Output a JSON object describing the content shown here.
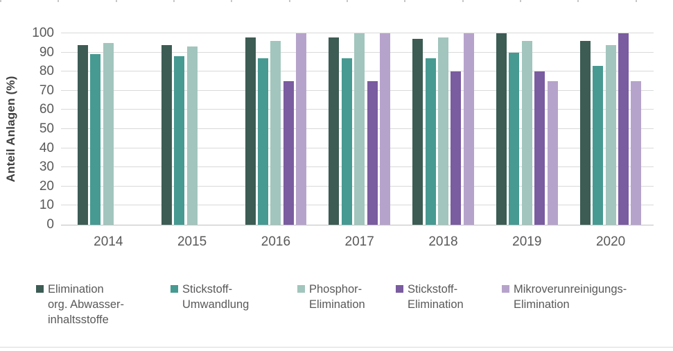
{
  "chart_data": {
    "type": "bar",
    "title": "",
    "xlabel": "",
    "ylabel": "Anteil Anlagen (%)",
    "ylim": [
      0,
      100
    ],
    "ytick_step": 10,
    "yticks": [
      "0",
      "10",
      "20",
      "30",
      "40",
      "50",
      "60",
      "70",
      "80",
      "90",
      "100"
    ],
    "grid": "horizontal",
    "legend_position": "bottom",
    "categories": [
      "2014",
      "2015",
      "2016",
      "2017",
      "2018",
      "2019",
      "2020"
    ],
    "series": [
      {
        "name": "Elimination org. Abwasser-inhaltsstoffe",
        "legend_lines": [
          "Elimination",
          "org. Abwasser-",
          "inhaltsstoffe"
        ],
        "color": "#3C5C54",
        "values": [
          94,
          94,
          98,
          98,
          97,
          100,
          96
        ]
      },
      {
        "name": "Stickstoff-Umwandlung",
        "legend_lines": [
          "Stickstoff-",
          "Umwandlung"
        ],
        "color": "#469A92",
        "values": [
          89,
          88,
          87,
          87,
          87,
          90,
          83
        ]
      },
      {
        "name": "Phosphor-Elimination",
        "legend_lines": [
          "Phosphor-",
          "Elimination"
        ],
        "color": "#A2C5BD",
        "values": [
          95,
          93,
          96,
          100,
          98,
          96,
          94
        ]
      },
      {
        "name": "Stickstoff-Elimination",
        "legend_lines": [
          "Stickstoff-",
          "Elimination"
        ],
        "color": "#7A5CA0",
        "values": [
          null,
          null,
          75,
          75,
          80,
          80,
          100
        ]
      },
      {
        "name": "Mikroverunreinigungs-Elimination",
        "legend_lines": [
          "Mikroverunreinigungs-",
          "Elimination"
        ],
        "color": "#B6A3CB",
        "values": [
          null,
          null,
          100,
          100,
          100,
          75,
          75
        ]
      }
    ]
  },
  "colors": {
    "gridline": "#d9d9d9",
    "zero_axis": "#bfbfbf",
    "tick_text": "#595959",
    "axis_title_text": "#404040",
    "top_tick_marks": "#c7c7c7"
  }
}
